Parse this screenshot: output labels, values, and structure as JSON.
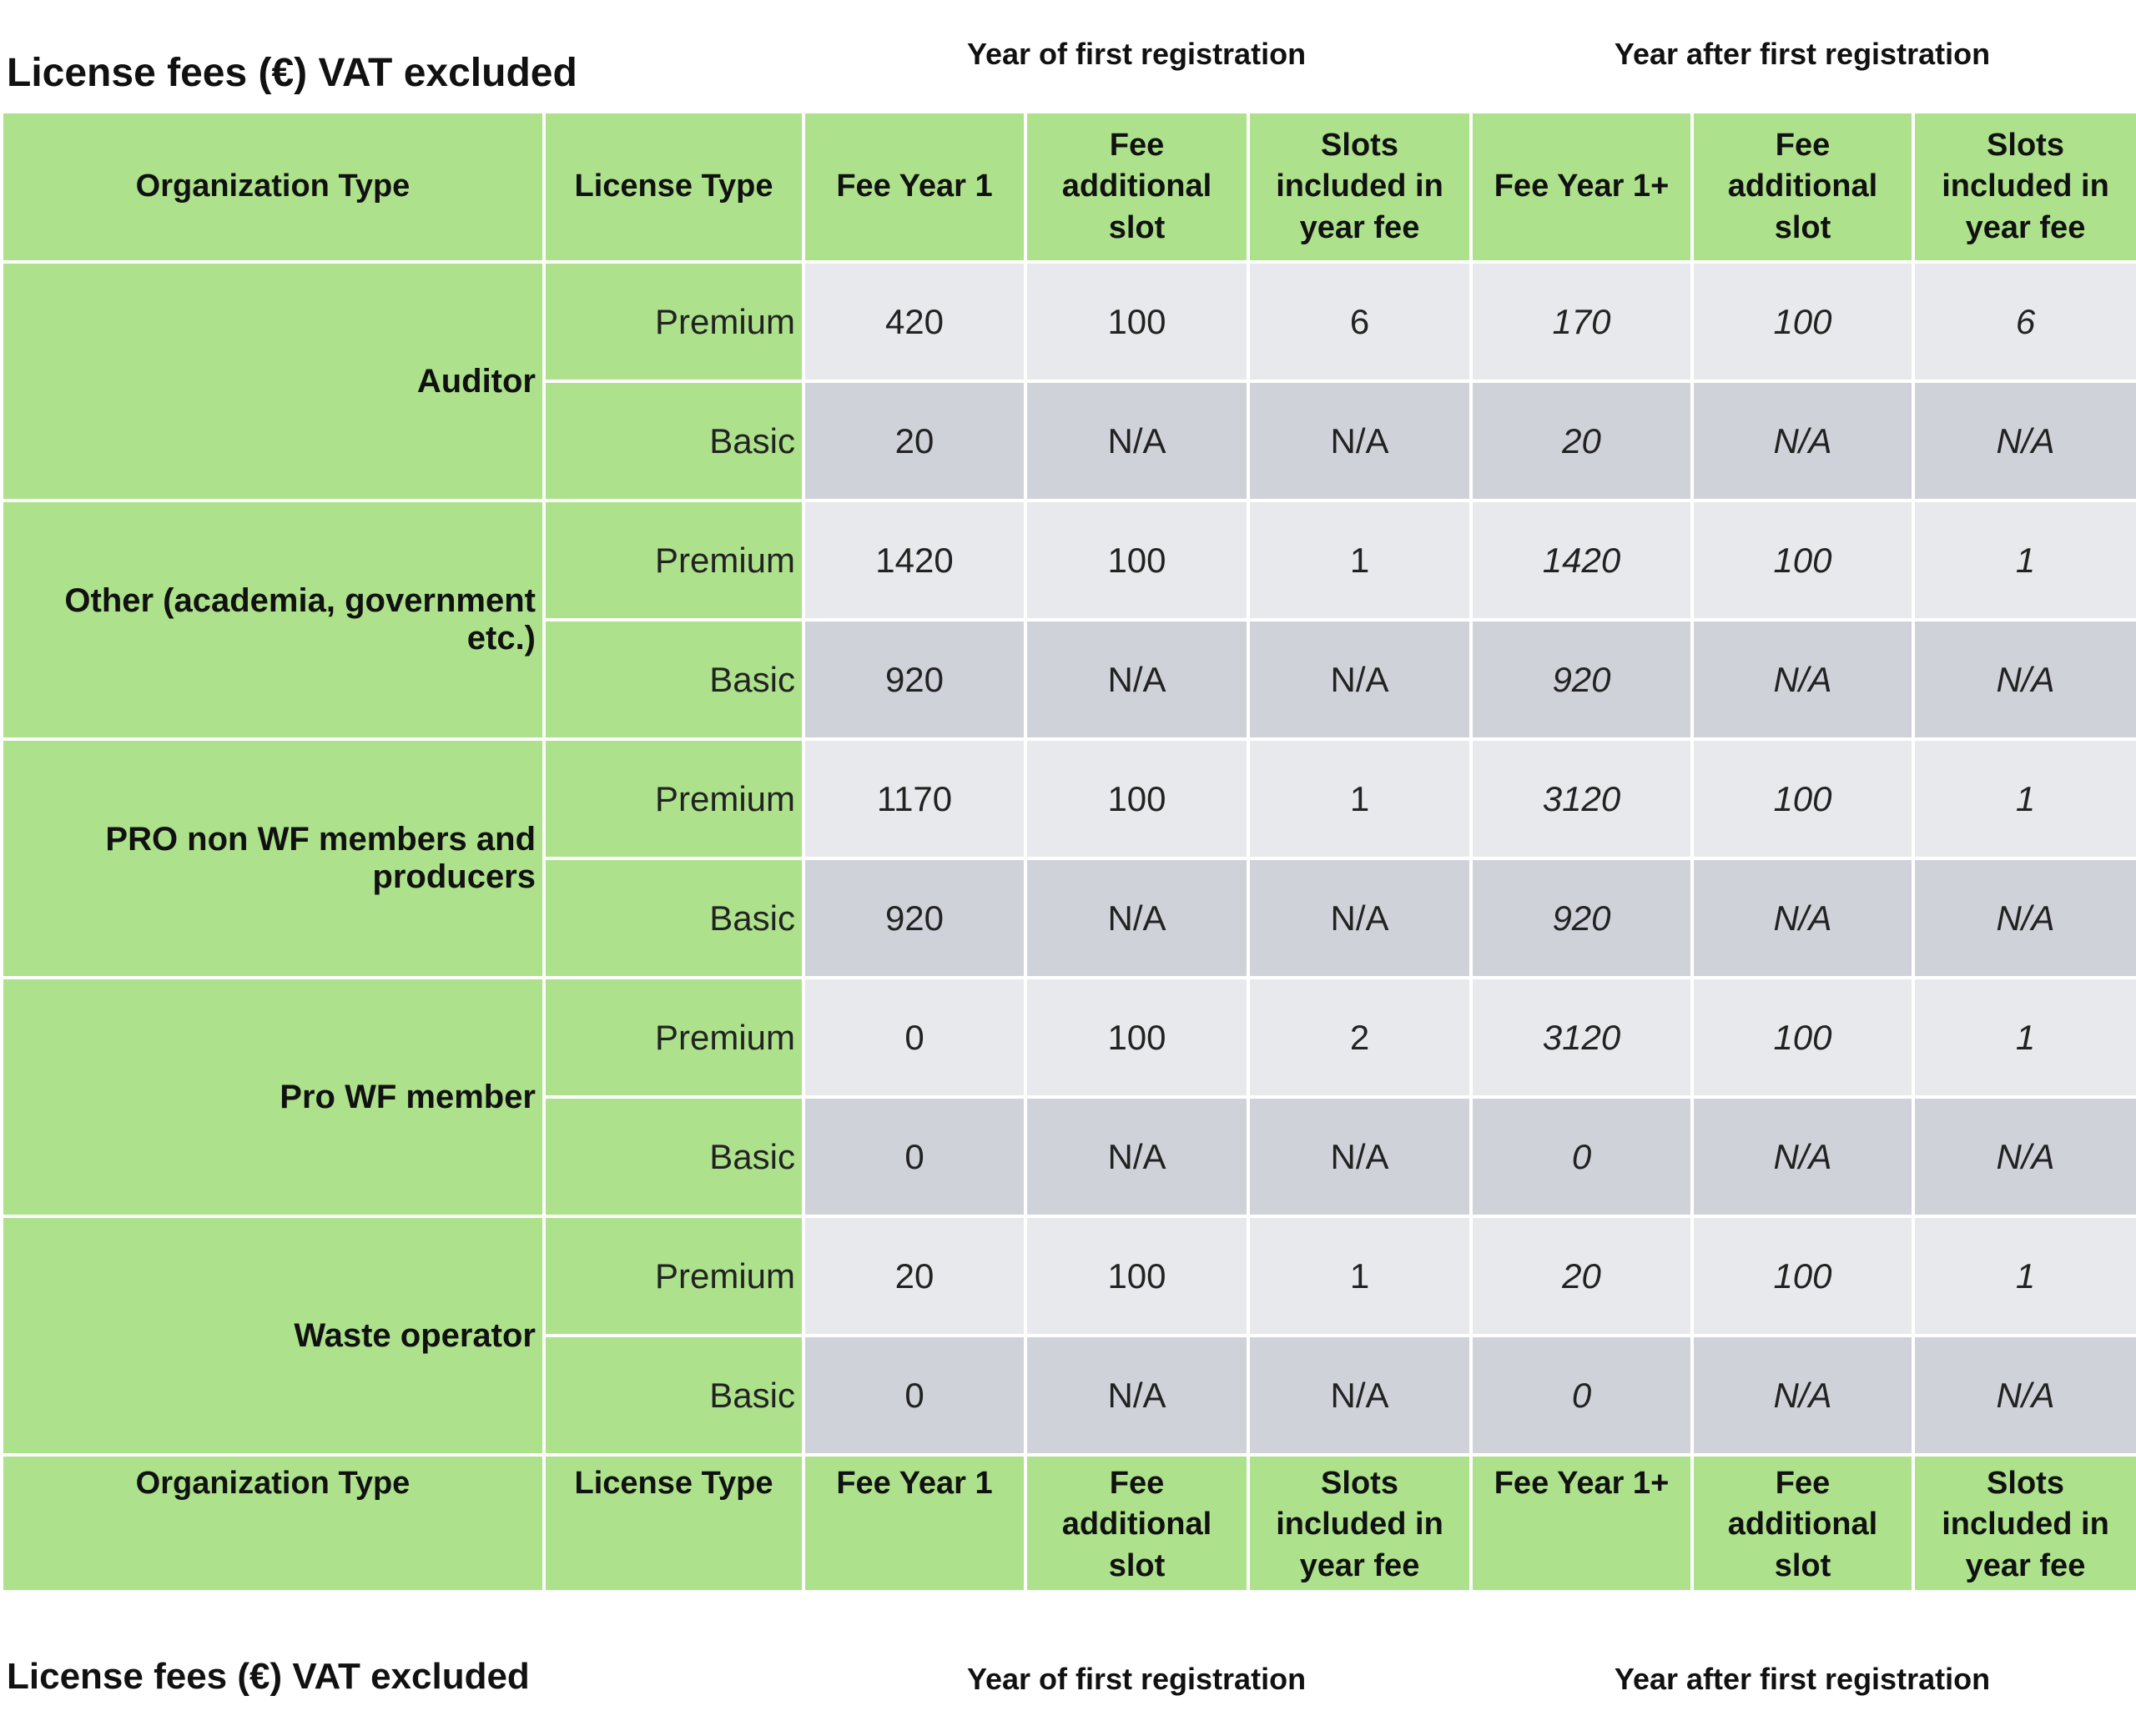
{
  "header": {
    "title": "License fees (€) VAT excluded",
    "group_first": "Year of first registration",
    "group_after": "Year after first registration"
  },
  "columns": [
    "Organization Type",
    "License Type",
    "Fee Year 1",
    "Fee additional slot",
    "Slots included in year fee",
    "Fee Year 1+",
    "Fee additional slot",
    "Slots included in year fee"
  ],
  "rows": [
    {
      "org": "Auditor",
      "licenses": [
        {
          "type": "Premium",
          "values": [
            420,
            100,
            6,
            170,
            100,
            6
          ]
        },
        {
          "type": "Basic",
          "values": [
            20,
            "N/A",
            "N/A",
            20,
            "N/A",
            "N/A"
          ]
        }
      ]
    },
    {
      "org": "Other (academia, government etc.)",
      "licenses": [
        {
          "type": "Premium",
          "values": [
            1420,
            100,
            1,
            1420,
            100,
            1
          ]
        },
        {
          "type": "Basic",
          "values": [
            920,
            "N/A",
            "N/A",
            920,
            "N/A",
            "N/A"
          ]
        }
      ]
    },
    {
      "org": "PRO non WF members and producers",
      "licenses": [
        {
          "type": "Premium",
          "values": [
            1170,
            100,
            1,
            3120,
            100,
            1
          ]
        },
        {
          "type": "Basic",
          "values": [
            920,
            "N/A",
            "N/A",
            920,
            "N/A",
            "N/A"
          ]
        }
      ]
    },
    {
      "org": "Pro WF member",
      "licenses": [
        {
          "type": "Premium",
          "values": [
            0,
            100,
            2,
            3120,
            100,
            1
          ]
        },
        {
          "type": "Basic",
          "values": [
            0,
            "N/A",
            "N/A",
            0,
            "N/A",
            "N/A"
          ]
        }
      ]
    },
    {
      "org": "Waste operator",
      "licenses": [
        {
          "type": "Premium",
          "values": [
            20,
            100,
            1,
            20,
            100,
            1
          ]
        },
        {
          "type": "Basic",
          "values": [
            0,
            "N/A",
            "N/A",
            0,
            "N/A",
            "N/A"
          ]
        }
      ]
    }
  ]
}
